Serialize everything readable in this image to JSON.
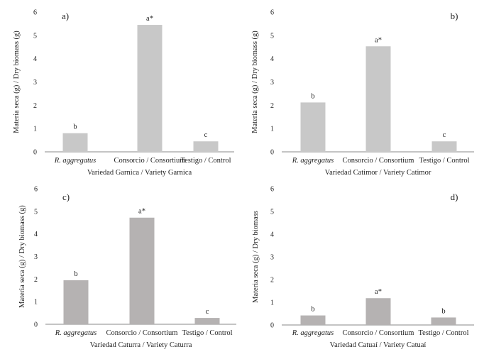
{
  "chart_data": [
    {
      "type": "bar",
      "panel_label": "a)",
      "categories": [
        "R. aggregatus",
        "Consorcio / Consortium",
        "Testigo / Control"
      ],
      "values": [
        0.8,
        5.45,
        0.45
      ],
      "data_labels": [
        "b",
        "a*",
        "c"
      ],
      "ylabel": "Materia seca (g) / Dry biomass (g)",
      "xlabel": "Variedad Garnica / Variety Garnica",
      "ylim": [
        0,
        6
      ],
      "yticks": [
        "0",
        "1",
        "2",
        "3",
        "4",
        "5",
        "6"
      ],
      "bar_color": "#c8c8c8"
    },
    {
      "type": "bar",
      "panel_label": "b)",
      "categories": [
        "R. aggregatus",
        "Consorcio / Consortium",
        "Testigo / Control"
      ],
      "values": [
        2.12,
        4.53,
        0.45
      ],
      "data_labels": [
        "b",
        "a*",
        "c"
      ],
      "ylabel": "Materia seca (g) / Dry biomass (g)",
      "xlabel": "Variedad Catimor / Variety Catimor",
      "ylim": [
        0,
        6
      ],
      "yticks": [
        "0",
        "1",
        "2",
        "3",
        "4",
        "5",
        "6"
      ],
      "bar_color": "#c8c8c8"
    },
    {
      "type": "bar",
      "panel_label": "c)",
      "categories": [
        "R. aggregatus",
        "Consorcio / Consortium",
        "Testigo / Control"
      ],
      "values": [
        1.95,
        4.72,
        0.28
      ],
      "data_labels": [
        "b",
        "a*",
        "c"
      ],
      "ylabel": "Materia seca (g) / Dry biomass (g)",
      "xlabel": "Variedad Caturra / Variety Caturra",
      "ylim": [
        0,
        6
      ],
      "yticks": [
        "0",
        "1",
        "2",
        "3",
        "4",
        "5",
        "6"
      ],
      "bar_color": "#b5b2b2"
    },
    {
      "type": "bar",
      "panel_label": "d)",
      "categories": [
        "R. aggregatus",
        "Consorcio / Consortium",
        "Testigo / Control"
      ],
      "values": [
        0.42,
        1.18,
        0.33
      ],
      "data_labels": [
        "b",
        "a*",
        "b"
      ],
      "ylabel": "Materia seca (g) / Dry biomass",
      "xlabel": "Variedad Catuaí / Variety Catuaí",
      "ylim": [
        0,
        6
      ],
      "yticks": [
        "0",
        "1",
        "2",
        "3",
        "4",
        "5",
        "6"
      ],
      "bar_color": "#b5b2b2"
    }
  ]
}
